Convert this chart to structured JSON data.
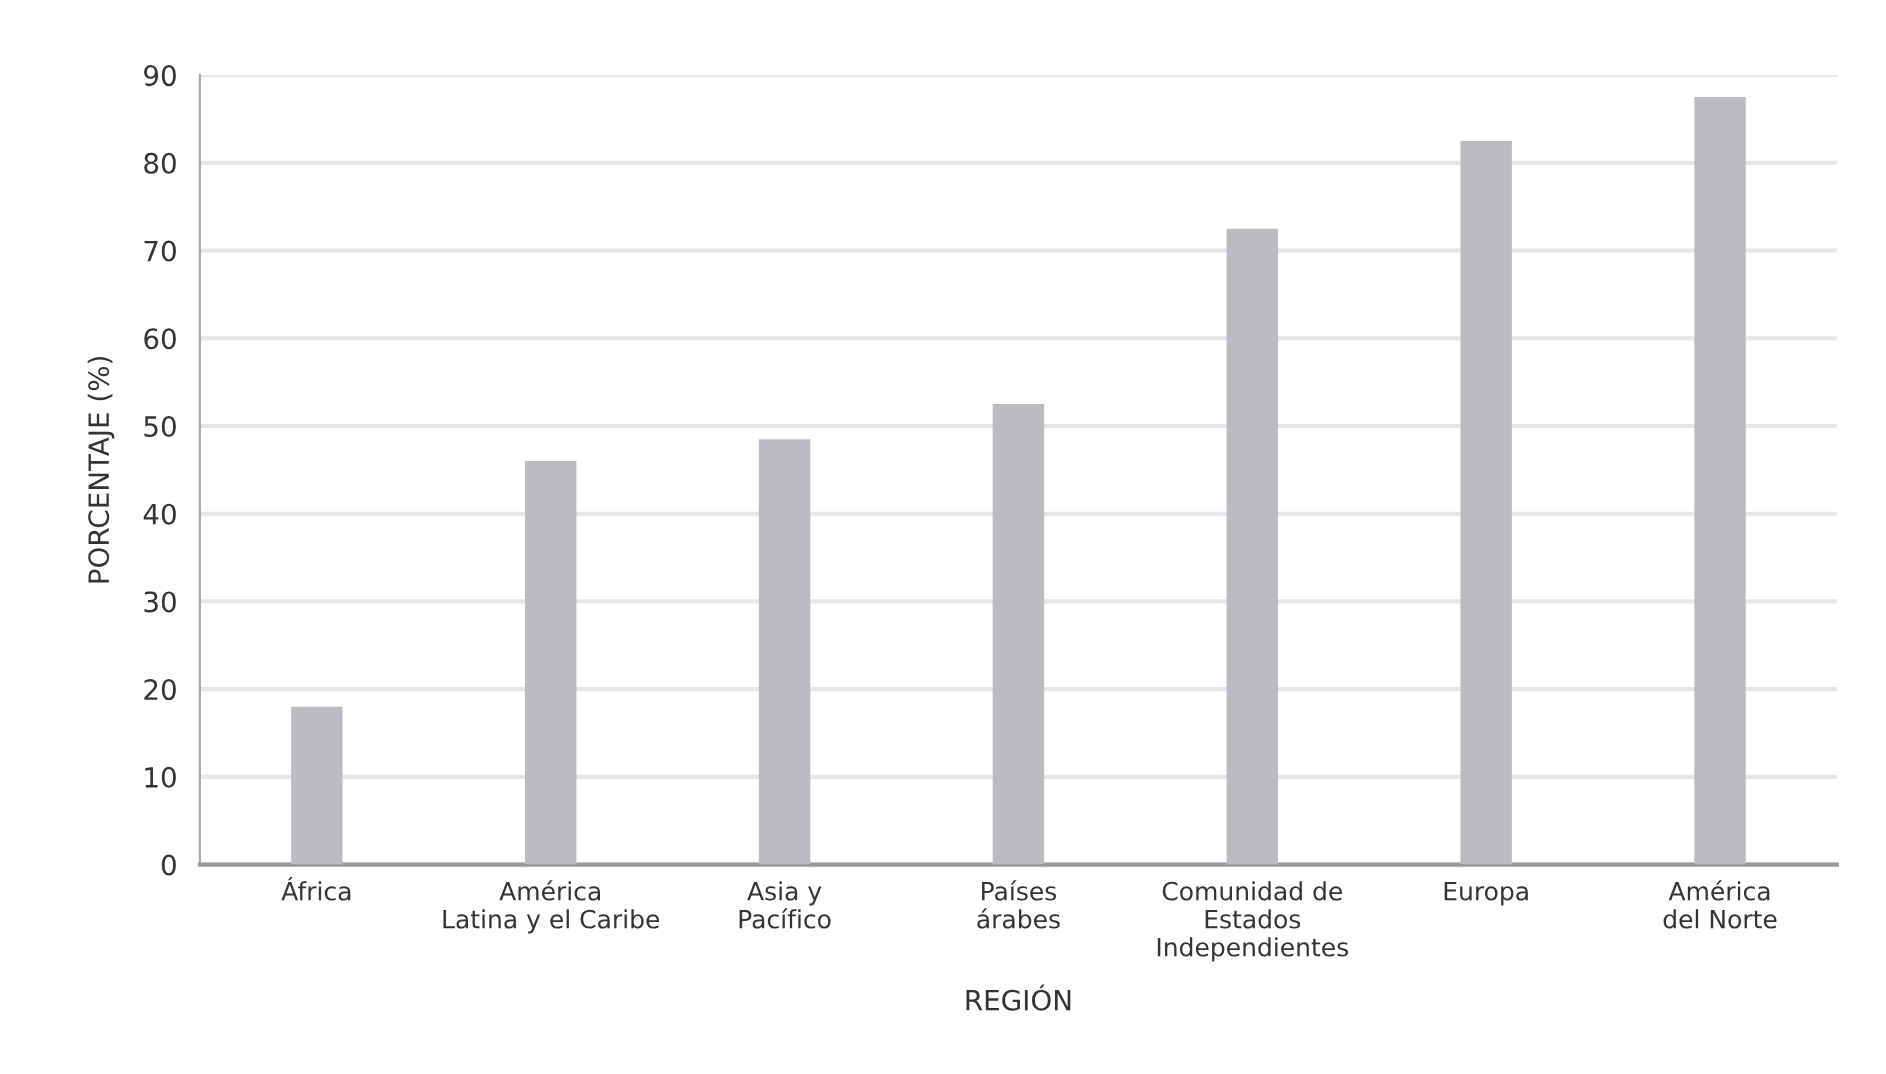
{
  "chart_data": {
    "type": "bar",
    "xlabel": "REGIÓN",
    "ylabel": "PORCENTAJE (%)",
    "categories": [
      "África",
      "América\nLatina y el Caribe",
      "Asia y\nPacífico",
      "Países\nárabes",
      "Comunidad de\nEstados\nIndependientes",
      "Europa",
      "América\ndel Norte"
    ],
    "values": [
      18,
      46,
      48.5,
      52.5,
      72.5,
      82.5,
      87.5
    ],
    "color": "#bbbcc0",
    "ylim": [
      0,
      90
    ],
    "yticks": [
      0,
      10,
      20,
      30,
      40,
      50,
      60,
      70,
      80,
      90
    ],
    "grid": "y"
  }
}
